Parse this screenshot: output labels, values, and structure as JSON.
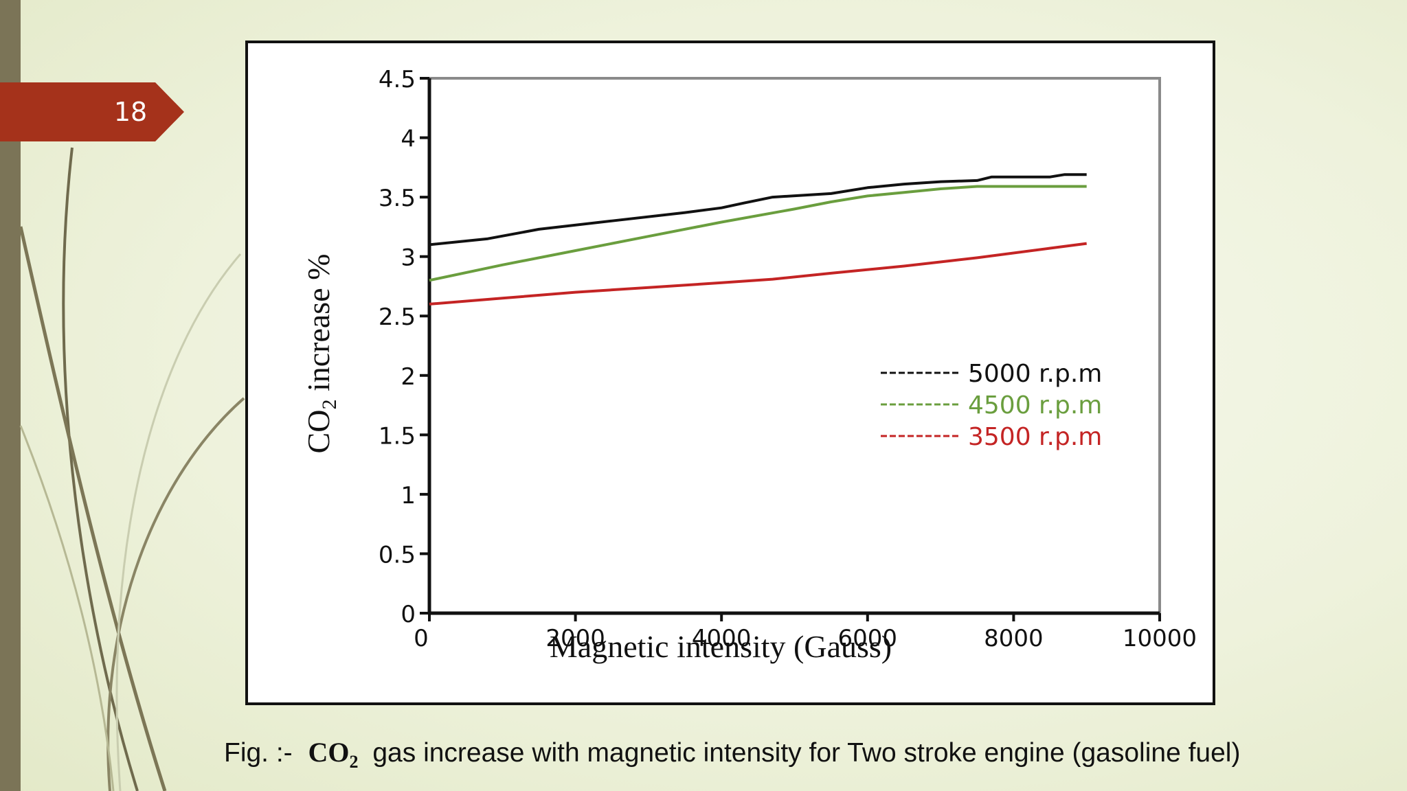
{
  "slide": {
    "number": "18"
  },
  "theme": {
    "tag_color": "#a5321b",
    "bar_color": "#7b7457"
  },
  "caption": {
    "prefix": "Fig. :-",
    "formula_main": "CO",
    "formula_sub": "2",
    "suffix": "gas increase with magnetic intensity for Two stroke engine (gasoline fuel)"
  },
  "chart_data": {
    "type": "line",
    "title": "",
    "xlabel": "Magnetic intensity (Gauss)",
    "ylabel_main": "CO",
    "ylabel_sub": "2",
    "ylabel_rest": " increase %",
    "xlim": [
      0,
      10000
    ],
    "ylim": [
      0,
      4.5
    ],
    "x_ticks": [
      0,
      2000,
      4000,
      6000,
      8000,
      10000
    ],
    "x_tick_labels": [
      "0",
      "2000",
      "4000",
      "6000",
      "8000",
      "10000"
    ],
    "y_ticks": [
      0,
      0.5,
      1,
      1.5,
      2,
      2.5,
      3,
      3.5,
      4,
      4.5
    ],
    "y_tick_labels": [
      "0",
      "0.5",
      "1",
      "1.5",
      "2",
      "2.5",
      "3",
      "3.5",
      "4",
      "4.5"
    ],
    "grid": false,
    "legend_position": "center-right",
    "series": [
      {
        "name": "5000 r.p.m",
        "color": "#111111",
        "x": [
          0,
          800,
          1500,
          2500,
          3500,
          4000,
          4300,
          4700,
          5500,
          6000,
          6500,
          7000,
          7500,
          7700,
          8500,
          8700,
          9000
        ],
        "y": [
          3.1,
          3.15,
          3.23,
          3.3,
          3.37,
          3.41,
          3.45,
          3.5,
          3.53,
          3.58,
          3.61,
          3.63,
          3.64,
          3.67,
          3.67,
          3.69,
          3.69
        ]
      },
      {
        "name": "4500 r.p.m",
        "color": "#6a9e3e",
        "x": [
          0,
          1000,
          2000,
          3000,
          4000,
          5000,
          5500,
          6000,
          6500,
          7000,
          7500,
          8000,
          9000
        ],
        "y": [
          2.8,
          2.93,
          3.05,
          3.17,
          3.29,
          3.4,
          3.46,
          3.51,
          3.54,
          3.57,
          3.59,
          3.59,
          3.59
        ]
      },
      {
        "name": "3500 r.p.m",
        "color": "#c42424",
        "x": [
          0,
          1000,
          2000,
          3000,
          4000,
          4700,
          5500,
          6500,
          7500,
          8500,
          9000
        ],
        "y": [
          2.6,
          2.65,
          2.7,
          2.74,
          2.78,
          2.81,
          2.86,
          2.92,
          2.99,
          3.07,
          3.11
        ]
      }
    ]
  }
}
